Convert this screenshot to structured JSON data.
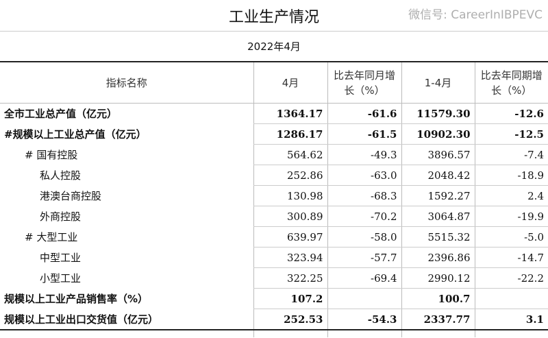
{
  "title": "工业生产情况",
  "subtitle": "2022年4月",
  "headers": [
    "指标名称",
    "4月",
    "比去年同月增长（%）",
    "1-4月",
    "比去年同期增长（%）"
  ],
  "rows": [
    {
      "name": "全市工业总产值（亿元）",
      "m4": "1364.17",
      "m4_growth": "-61.6",
      "ytd": "11579.30",
      "ytd_growth": "-12.6"
    },
    {
      "name": "#规模以上工业总产值（亿元）",
      "m4": "1286.17",
      "m4_growth": "-61.5",
      "ytd": "10902.30",
      "ytd_growth": "-12.5"
    },
    {
      "name": "# 国有控股",
      "m4": "564.62",
      "m4_growth": "-49.3",
      "ytd": "3896.57",
      "ytd_growth": "-7.4"
    },
    {
      "name": "私人控股",
      "m4": "252.86",
      "m4_growth": "-63.0",
      "ytd": "2048.42",
      "ytd_growth": "-18.9"
    },
    {
      "name": "港澳台商控股",
      "m4": "130.98",
      "m4_growth": "-68.3",
      "ytd": "1592.27",
      "ytd_growth": "2.4"
    },
    {
      "name": "外商控股",
      "m4": "300.89",
      "m4_growth": "-70.2",
      "ytd": "3064.87",
      "ytd_growth": "-19.9"
    },
    {
      "name": "# 大型工业",
      "m4": "639.97",
      "m4_growth": "-58.0",
      "ytd": "5515.32",
      "ytd_growth": "-5.0"
    },
    {
      "name": "中型工业",
      "m4": "323.94",
      "m4_growth": "-57.7",
      "ytd": "2396.86",
      "ytd_growth": "-14.7"
    },
    {
      "name": "小型工业",
      "m4": "322.25",
      "m4_growth": "-69.4",
      "ytd": "2990.12",
      "ytd_growth": "-22.2"
    },
    {
      "name": "规模以上工业产品销售率（%）",
      "m4": "107.2",
      "m4_growth": "",
      "ytd": "100.7",
      "ytd_growth": ""
    },
    {
      "name": "规模以上工业出口交货值（亿元）",
      "m4": "252.53",
      "m4_growth": "-54.3",
      "ytd": "2337.77",
      "ytd_growth": "3.1"
    }
  ],
  "watermark": "微信号: CareerInIBPEVC"
}
